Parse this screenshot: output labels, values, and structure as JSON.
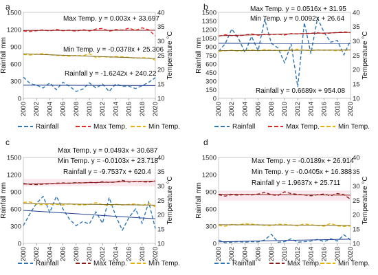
{
  "colors": {
    "rainfall": "#2e75b6",
    "rainfall_trend": "#1f3f8f",
    "max_temp": "#e32222",
    "max_temp_dark": "#8b1a1a",
    "min_temp": "#e8b000",
    "min_temp_trend": "#7a6a20"
  },
  "chart_data": [
    {
      "panel": "a",
      "type": "line",
      "x": [
        2000,
        2001,
        2002,
        2003,
        2004,
        2005,
        2006,
        2007,
        2008,
        2009,
        2010,
        2011,
        2012,
        2013,
        2014,
        2015,
        2016,
        2017,
        2018,
        2019,
        2020
      ],
      "xticks": [
        "2000",
        "2002",
        "2004",
        "2006",
        "2008",
        "2010",
        "2012",
        "2014",
        "2016",
        "2018",
        "2020"
      ],
      "ylabel": "Rainfall mm",
      "y2label": "Temperature °C",
      "ylim": [
        0,
        1500
      ],
      "yticks": [
        "0",
        "300",
        "600",
        "900",
        "1200",
        "1500"
      ],
      "y2lim": [
        10,
        40
      ],
      "y2ticks": [
        "10",
        "15",
        "20",
        "25",
        "30",
        "35",
        "40"
      ],
      "series": [
        {
          "name": "Rainfall",
          "axis": "left",
          "values": [
            370,
            260,
            230,
            180,
            270,
            150,
            280,
            210,
            120,
            160,
            270,
            180,
            250,
            120,
            250,
            210,
            210,
            170,
            220,
            280,
            360
          ]
        },
        {
          "name": "Max Temp.",
          "axis": "right",
          "values": [
            33.5,
            33.3,
            33.6,
            33.9,
            33.5,
            34.1,
            33.6,
            33.8,
            33.4,
            34.0,
            33.5,
            34.2,
            34.4,
            33.4,
            34.0,
            33.8,
            34.5,
            33.7,
            34.6,
            33.9,
            31.8
          ]
        },
        {
          "name": "Min Temp.",
          "axis": "right",
          "values": [
            25.3,
            25.1,
            25.4,
            25.6,
            25.2,
            25.0,
            24.9,
            24.7,
            25.0,
            24.8,
            25.6,
            24.2,
            24.6,
            24.3,
            24.6,
            24.5,
            24.3,
            24.0,
            24.2,
            24.1,
            23.3
          ]
        }
      ],
      "annotations": [
        "Max Temp. y = 0.003x + 33.697",
        "Min Temp. y = -0.0378x + 25.306",
        "Rainfall y = -1.6242x + 240.22"
      ]
    },
    {
      "panel": "b",
      "type": "line",
      "x": [
        2000,
        2001,
        2002,
        2003,
        2004,
        2005,
        2006,
        2007,
        2008,
        2009,
        2010,
        2011,
        2012,
        2013,
        2014,
        2015,
        2016,
        2017,
        2018,
        2019,
        2020
      ],
      "xticks": [
        "2000",
        "2002",
        "2004",
        "2006",
        "2008",
        "2010",
        "2012",
        "2014",
        "2016",
        "2018",
        "2020"
      ],
      "ylabel": "Rainfall mm",
      "y2label": "Temperature °C",
      "ylim": [
        0,
        1500
      ],
      "yticks": [
        "0",
        "150",
        "300",
        "450",
        "600",
        "750",
        "900",
        "1050",
        "1200",
        "1350",
        "1500"
      ],
      "y2lim": [
        10,
        40
      ],
      "y2ticks": [
        "10",
        "15",
        "20",
        "25",
        "30",
        "35",
        "40"
      ],
      "series": [
        {
          "name": "Rainfall",
          "axis": "left",
          "values": [
            820,
            950,
            1210,
            1050,
            800,
            1080,
            830,
            1380,
            960,
            880,
            620,
            950,
            200,
            1320,
            780,
            1400,
            1150,
            980,
            1010,
            760,
            1010
          ]
        },
        {
          "name": "Max Temp.",
          "axis": "right",
          "values": [
            31.7,
            32.2,
            31.9,
            31.8,
            32.1,
            32.5,
            32.0,
            32.3,
            32.2,
            32.4,
            32.1,
            32.6,
            32.5,
            32.6,
            32.7,
            32.9,
            32.6,
            32.8,
            33.0,
            33.2,
            32.9
          ]
        },
        {
          "name": "Min Temp.",
          "axis": "right",
          "values": [
            26.4,
            26.6,
            26.8,
            26.5,
            26.7,
            26.9,
            26.6,
            27.0,
            26.8,
            26.7,
            26.6,
            26.9,
            27.1,
            26.8,
            26.7,
            26.9,
            26.8,
            26.8,
            26.6,
            26.8,
            26.9
          ]
        }
      ],
      "annotations": [
        "Max Temp. y = 0.0516x + 31.95",
        "Min Temp. y = 0.0092x + 26.64",
        "Rainfall y = 0.6689x + 954.08"
      ]
    },
    {
      "panel": "c",
      "type": "line",
      "x": [
        2000,
        2001,
        2002,
        2003,
        2004,
        2005,
        2006,
        2007,
        2008,
        2009,
        2010,
        2011,
        2012,
        2013,
        2014,
        2015,
        2016,
        2017,
        2018,
        2019,
        2020
      ],
      "xticks": [
        "2000",
        "2002",
        "2004",
        "2006",
        "2008",
        "2010",
        "2012",
        "2014",
        "2016",
        "2018",
        "2020"
      ],
      "ylabel": "Rainfall mm",
      "y2label": "Temperature °C",
      "ylim": [
        0,
        1500
      ],
      "yticks": [
        "0",
        "300",
        "600",
        "900",
        "1200",
        "1500"
      ],
      "y2lim": [
        10,
        40
      ],
      "y2ticks": [
        "10",
        "15",
        "20",
        "25",
        "30",
        "35",
        "40"
      ],
      "series": [
        {
          "name": "Rainfall",
          "axis": "left",
          "values": [
            310,
            520,
            700,
            820,
            540,
            820,
            600,
            420,
            310,
            380,
            340,
            550,
            350,
            800,
            480,
            230,
            450,
            600,
            350,
            720,
            260
          ]
        },
        {
          "name": "Max Temp.",
          "axis": "right",
          "values": [
            30.9,
            30.6,
            30.5,
            30.7,
            30.8,
            31.0,
            31.1,
            31.0,
            31.2,
            31.1,
            31.3,
            31.2,
            31.5,
            31.3,
            31.4,
            32.0,
            31.4,
            31.6,
            31.5,
            31.4,
            31.8
          ]
        },
        {
          "name": "Min Temp.",
          "axis": "right",
          "values": [
            24.3,
            24.5,
            23.6,
            23.5,
            23.7,
            23.6,
            23.4,
            23.8,
            23.5,
            23.4,
            23.6,
            24.2,
            23.5,
            23.3,
            23.7,
            23.4,
            23.6,
            23.8,
            23.2,
            24.0,
            22.8
          ]
        }
      ],
      "annotations": [
        "Max Temp. y = 0.0493x + 30.687",
        "Min Temp. y = -0.0103x + 23.718",
        "Rainfall y = -9.7537x + 620.4"
      ]
    },
    {
      "panel": "d",
      "type": "line",
      "x": [
        2000,
        2001,
        2002,
        2003,
        2004,
        2005,
        2006,
        2007,
        2008,
        2009,
        2010,
        2011,
        2012,
        2013,
        2014,
        2015,
        2016,
        2017,
        2018,
        2019,
        2020
      ],
      "xticks": [
        "2000",
        "2002",
        "2004",
        "2006",
        "2008",
        "2010",
        "2012",
        "2014",
        "2016",
        "2018",
        "2020"
      ],
      "ylabel": "Rainfall mm",
      "y2label": "Temperature °C",
      "ylim": [
        0,
        1500
      ],
      "yticks": [
        "0",
        "300",
        "600",
        "900",
        "1200",
        "1500"
      ],
      "y2lim": [
        10,
        40
      ],
      "y2ticks": [
        "10",
        "15",
        "20",
        "25",
        "30",
        "35",
        "40"
      ],
      "series": [
        {
          "name": "Rainfall",
          "axis": "left",
          "values": [
            60,
            10,
            20,
            30,
            20,
            30,
            25,
            60,
            160,
            20,
            30,
            80,
            20,
            30,
            40,
            70,
            30,
            80,
            40,
            150,
            60
          ]
        },
        {
          "name": "Max Temp.",
          "axis": "right",
          "values": [
            27.0,
            26.5,
            27.0,
            26.8,
            27.1,
            26.9,
            27.2,
            27.8,
            27.0,
            26.7,
            28.0,
            27.4,
            27.1,
            26.9,
            26.6,
            27.0,
            27.2,
            26.6,
            27.4,
            27.0,
            25.4
          ]
        },
        {
          "name": "Min Temp.",
          "axis": "right",
          "values": [
            16.3,
            16.0,
            16.6,
            16.4,
            16.9,
            16.7,
            16.5,
            16.3,
            16.2,
            16.7,
            16.6,
            16.4,
            16.2,
            16.8,
            16.5,
            16.3,
            16.0,
            17.0,
            16.1,
            15.9,
            16.1
          ]
        }
      ],
      "annotations": [
        "Max Temp. y = -0.0189x + 26.914",
        "Min Temp. y = -0.0405x + 16.388",
        "Rainfall y = 1.9637x + 25.711"
      ]
    }
  ]
}
